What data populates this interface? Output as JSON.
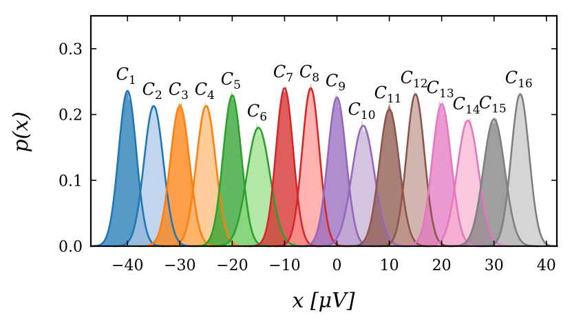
{
  "chart_data": {
    "type": "area",
    "title": "",
    "xlabel": "x [μV]",
    "ylabel": "p(x)",
    "xlim": [
      -47,
      42
    ],
    "ylim": [
      0,
      0.35
    ],
    "xticks": [
      -40,
      -30,
      -20,
      -10,
      0,
      10,
      20,
      30,
      40
    ],
    "xtick_labels": [
      "−40",
      "−30",
      "−20",
      "−10",
      "0",
      "10",
      "20",
      "30",
      "40"
    ],
    "yticks": [
      0.0,
      0.1,
      0.2,
      0.3
    ],
    "ytick_labels": [
      "0.0",
      "0.1",
      "0.2",
      "0.3"
    ],
    "grid": false,
    "series": [
      {
        "name": "C1",
        "label_base": "C",
        "label_sub": "1",
        "mean": -40,
        "peak": 0.236,
        "sd": 1.7,
        "color": "#1f77b4",
        "fill": "#1f77b4",
        "fill_opacity": 0.75
      },
      {
        "name": "C2",
        "label_base": "C",
        "label_sub": "2",
        "mean": -35,
        "peak": 0.213,
        "sd": 1.85,
        "color": "#1f77b4",
        "fill": "#aec7e8",
        "fill_opacity": 0.75
      },
      {
        "name": "C3",
        "label_base": "C",
        "label_sub": "3",
        "mean": -30,
        "peak": 0.213,
        "sd": 1.85,
        "color": "#ff7f0e",
        "fill": "#ff7f0e",
        "fill_opacity": 0.75
      },
      {
        "name": "C4",
        "label_base": "C",
        "label_sub": "4",
        "mean": -25,
        "peak": 0.213,
        "sd": 1.85,
        "color": "#ff7f0e",
        "fill": "#ffbb78",
        "fill_opacity": 0.75
      },
      {
        "name": "C5",
        "label_base": "C",
        "label_sub": "5",
        "mean": -20,
        "peak": 0.229,
        "sd": 1.75,
        "color": "#2ca02c",
        "fill": "#2ca02c",
        "fill_opacity": 0.75
      },
      {
        "name": "C6",
        "label_base": "C",
        "label_sub": "6",
        "mean": -15,
        "peak": 0.18,
        "sd": 2.2,
        "color": "#2ca02c",
        "fill": "#98df8a",
        "fill_opacity": 0.75
      },
      {
        "name": "C7",
        "label_base": "C",
        "label_sub": "7",
        "mean": -10,
        "peak": 0.24,
        "sd": 1.65,
        "color": "#d62728",
        "fill": "#d62728",
        "fill_opacity": 0.75
      },
      {
        "name": "C8",
        "label_base": "C",
        "label_sub": "8",
        "mean": -5,
        "peak": 0.24,
        "sd": 1.65,
        "color": "#d62728",
        "fill": "#ff9896",
        "fill_opacity": 0.75
      },
      {
        "name": "C9",
        "label_base": "C",
        "label_sub": "9",
        "mean": 0,
        "peak": 0.226,
        "sd": 1.75,
        "color": "#9467bd",
        "fill": "#9467bd",
        "fill_opacity": 0.75
      },
      {
        "name": "C10",
        "label_base": "C",
        "label_sub": "10",
        "mean": 5,
        "peak": 0.183,
        "sd": 2.15,
        "color": "#9467bd",
        "fill": "#c5b0d5",
        "fill_opacity": 0.75
      },
      {
        "name": "C11",
        "label_base": "C",
        "label_sub": "11",
        "mean": 10,
        "peak": 0.208,
        "sd": 1.9,
        "color": "#8c564b",
        "fill": "#8c564b",
        "fill_opacity": 0.75
      },
      {
        "name": "C12",
        "label_base": "C",
        "label_sub": "12",
        "mean": 15,
        "peak": 0.231,
        "sd": 1.72,
        "color": "#8c564b",
        "fill": "#c49c94",
        "fill_opacity": 0.75
      },
      {
        "name": "C13",
        "label_base": "C",
        "label_sub": "13",
        "mean": 20,
        "peak": 0.216,
        "sd": 1.82,
        "color": "#e377c2",
        "fill": "#e377c2",
        "fill_opacity": 0.75
      },
      {
        "name": "C14",
        "label_base": "C",
        "label_sub": "14",
        "mean": 25,
        "peak": 0.191,
        "sd": 2.05,
        "color": "#e377c2",
        "fill": "#f7b6d2",
        "fill_opacity": 0.75
      },
      {
        "name": "C15",
        "label_base": "C",
        "label_sub": "15",
        "mean": 30,
        "peak": 0.193,
        "sd": 2.05,
        "color": "#7f7f7f",
        "fill": "#7f7f7f",
        "fill_opacity": 0.75
      },
      {
        "name": "C16",
        "label_base": "C",
        "label_sub": "16",
        "mean": 35,
        "peak": 0.231,
        "sd": 1.72,
        "color": "#7f7f7f",
        "fill": "#c7c7c7",
        "fill_opacity": 0.75
      }
    ]
  }
}
